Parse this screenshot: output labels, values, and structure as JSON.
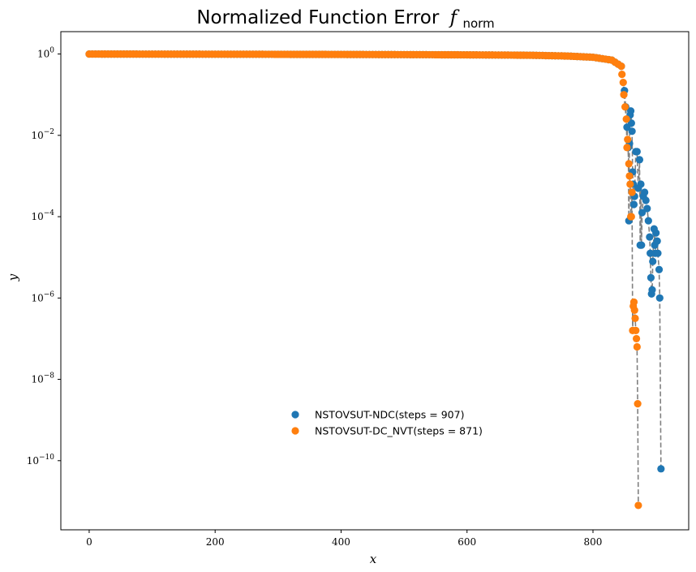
{
  "chart_data": {
    "type": "scatter",
    "title": "Normalized Function Error",
    "title_symbol": "f",
    "title_subscript": "norm",
    "xlabel": "x",
    "ylabel": "y",
    "xlim": [
      -45,
      952
    ],
    "xticks": [
      0,
      200,
      400,
      600,
      800
    ],
    "ylog": true,
    "ylim_log10": [
      -11.7,
      0.55
    ],
    "yticks_log10": [
      0,
      -2,
      -4,
      -6,
      -8,
      -10
    ],
    "ytick_base": "10",
    "grid": false,
    "legend_position": "lower-center",
    "connector_color": "#808080",
    "series": [
      {
        "name": "NSTOVSUT-NDC(steps = 907)",
        "color": "#1f77b4",
        "steps": 907,
        "plateau": [
          [
            0,
            0
          ],
          [
            400,
            -0.01
          ],
          [
            600,
            -0.02
          ],
          [
            700,
            -0.03
          ],
          [
            760,
            -0.05
          ],
          [
            800,
            -0.08
          ],
          [
            830,
            -0.15
          ],
          [
            845,
            -0.3
          ]
        ],
        "points": [
          [
            850,
            -0.9
          ],
          [
            852,
            -1.3
          ],
          [
            854,
            -1.8
          ],
          [
            856,
            -2.3
          ],
          [
            857,
            -4.1
          ],
          [
            858,
            -2.2
          ],
          [
            859,
            -1.5
          ],
          [
            860,
            -1.4
          ],
          [
            861,
            -1.7
          ],
          [
            862,
            -1.9
          ],
          [
            863,
            -2.9
          ],
          [
            864,
            -3.2
          ],
          [
            865,
            -3.7
          ],
          [
            866,
            -3.5
          ],
          [
            868,
            -2.4
          ],
          [
            870,
            -2.4
          ],
          [
            872,
            -3.3
          ],
          [
            874,
            -2.6
          ],
          [
            875,
            -4.7
          ],
          [
            876,
            -3.2
          ],
          [
            877,
            -4.7
          ],
          [
            878,
            -3.9
          ],
          [
            880,
            -3.5
          ],
          [
            882,
            -3.4
          ],
          [
            884,
            -3.6
          ],
          [
            886,
            -3.8
          ],
          [
            888,
            -4.1
          ],
          [
            890,
            -4.5
          ],
          [
            891,
            -4.9
          ],
          [
            892,
            -5.5
          ],
          [
            893,
            -5.9
          ],
          [
            894,
            -5.8
          ],
          [
            895,
            -5.1
          ],
          [
            897,
            -4.3
          ],
          [
            898,
            -4.7
          ],
          [
            899,
            -4.9
          ],
          [
            900,
            -4.4
          ],
          [
            902,
            -4.6
          ],
          [
            903,
            -4.9
          ],
          [
            905,
            -5.3
          ],
          [
            906,
            -6.0
          ],
          [
            908,
            -10.2
          ]
        ]
      },
      {
        "name": "NSTOVSUT-DC_NVT(steps = 871)",
        "color": "#ff7f0e",
        "steps": 871,
        "plateau": [
          [
            0,
            0
          ],
          [
            400,
            -0.01
          ],
          [
            600,
            -0.02
          ],
          [
            700,
            -0.03
          ],
          [
            760,
            -0.05
          ],
          [
            800,
            -0.08
          ],
          [
            830,
            -0.15
          ],
          [
            845,
            -0.3
          ]
        ],
        "points": [
          [
            846,
            -0.5
          ],
          [
            848,
            -0.7
          ],
          [
            849,
            -1.0
          ],
          [
            851,
            -1.3
          ],
          [
            853,
            -1.6
          ],
          [
            854,
            -2.3
          ],
          [
            855,
            -2.1
          ],
          [
            857,
            -2.7
          ],
          [
            858,
            -3.0
          ],
          [
            859,
            -3.2
          ],
          [
            860,
            -4.0
          ],
          [
            861,
            -4.0
          ],
          [
            862,
            -3.4
          ],
          [
            863,
            -6.8
          ],
          [
            864,
            -6.2
          ],
          [
            865,
            -6.1
          ],
          [
            866,
            -6.3
          ],
          [
            867,
            -6.5
          ],
          [
            868,
            -6.8
          ],
          [
            869,
            -7.0
          ],
          [
            870,
            -7.2
          ],
          [
            871,
            -8.6
          ],
          [
            872,
            -11.1
          ]
        ]
      }
    ]
  }
}
